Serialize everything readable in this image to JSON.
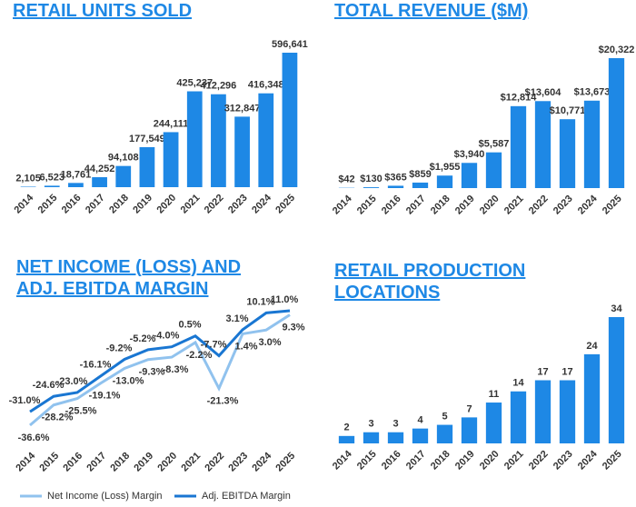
{
  "chart_data": [
    {
      "type": "bar",
      "title": "RETAIL UNITS SOLD",
      "color": "#1e88e5",
      "categories": [
        "2014",
        "2015",
        "2016",
        "2017",
        "2018",
        "2019",
        "2020",
        "2021",
        "2022",
        "2023",
        "2024",
        "2025"
      ],
      "values": [
        2105,
        6523,
        18761,
        44252,
        94108,
        177549,
        244111,
        425237,
        412296,
        312847,
        416348,
        596641
      ],
      "value_labels": [
        "2,105",
        "6,523",
        "18,761",
        "44,252",
        "94,108",
        "177,549",
        "244,111",
        "425,237",
        "412,296",
        "312,847",
        "416,348",
        "596,641"
      ]
    },
    {
      "type": "bar",
      "title": "TOTAL REVENUE ($M)",
      "color": "#1e88e5",
      "categories": [
        "2014",
        "2015",
        "2016",
        "2017",
        "2018",
        "2019",
        "2020",
        "2021",
        "2022",
        "2023",
        "2024",
        "2025"
      ],
      "values": [
        42,
        130,
        365,
        859,
        1955,
        3940,
        5587,
        12814,
        13604,
        10771,
        13673,
        20322
      ],
      "value_labels": [
        "$42",
        "$130",
        "$365",
        "$859",
        "$1,955",
        "$3,940",
        "$5,587",
        "$12,814",
        "$13,604",
        "$10,771",
        "$13,673",
        "$20,322"
      ]
    },
    {
      "type": "line",
      "title": "NET INCOME (LOSS) AND ADJ. EBITDA MARGIN",
      "categories": [
        "2014",
        "2015",
        "2016",
        "2017",
        "2018",
        "2019",
        "2020",
        "2021",
        "2022",
        "2023",
        "2024",
        "2025"
      ],
      "series": [
        {
          "name": "Net Income (Loss) Margin",
          "color": "#90c2ee",
          "values": [
            -36.6,
            -28.2,
            -25.5,
            -19.1,
            -13.0,
            -9.3,
            -8.3,
            -2.2,
            -21.3,
            1.4,
            3.0,
            9.3
          ],
          "value_labels": [
            "-36.6%",
            "-28.2%",
            "-25.5%",
            "-19.1%",
            "-13.0%",
            "-9.3%",
            "-8.3%",
            "-2.2%",
            "-21.3%",
            "1.4%",
            "3.0%",
            "9.3%"
          ]
        },
        {
          "name": "Adj. EBITDA Margin",
          "color": "#1976d2",
          "values": [
            -31.0,
            -24.6,
            -23.0,
            -16.1,
            -9.2,
            -5.2,
            -4.0,
            0.5,
            -7.7,
            3.1,
            10.1,
            11.0
          ],
          "value_labels": [
            "-31.0%",
            "-24.6%",
            "-23.0%",
            "-16.1%",
            "-9.2%",
            "-5.2%",
            "-4.0%",
            "0.5%",
            "-7.7%",
            "3.1%",
            "10.1%",
            "11.0%"
          ]
        }
      ]
    },
    {
      "type": "bar",
      "title": "RETAIL PRODUCTION LOCATIONS",
      "color": "#1e88e5",
      "categories": [
        "2014",
        "2015",
        "2016",
        "2017",
        "2018",
        "2019",
        "2020",
        "2021",
        "2022",
        "2023",
        "2024",
        "2025"
      ],
      "values": [
        2,
        3,
        3,
        4,
        5,
        7,
        11,
        14,
        17,
        17,
        24,
        34
      ]
    }
  ]
}
